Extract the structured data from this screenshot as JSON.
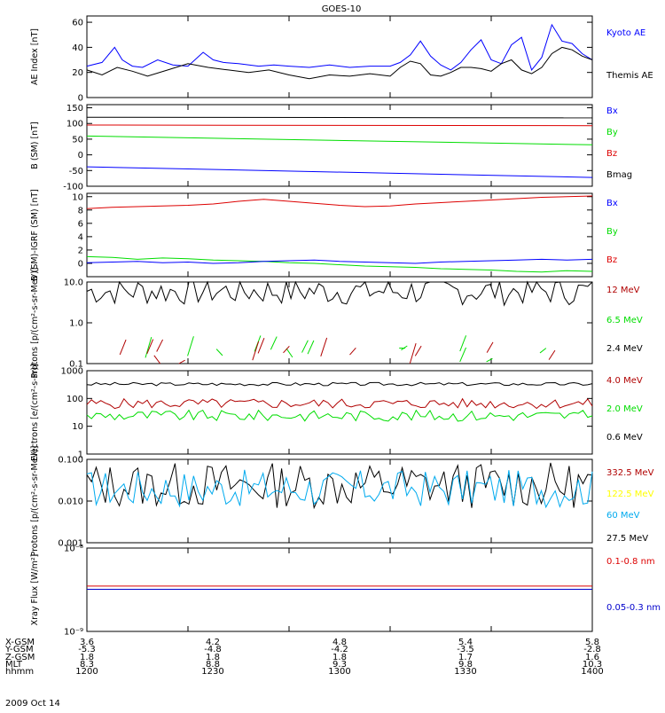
{
  "figure": {
    "title": "GOES-10",
    "date": "2009 Oct 14"
  },
  "footer": {
    "row_labels": [
      "X-GSM",
      "Y-GSM",
      "Z-GSM",
      "MLT",
      "hhmm"
    ],
    "columns": [
      [
        "3.6",
        "-5.3",
        "1.8",
        "8.3",
        "1200"
      ],
      [
        "4.2",
        "-4.8",
        "1.8",
        "8.8",
        "1230"
      ],
      [
        "4.8",
        "-4.2",
        "1.8",
        "9.3",
        "1300"
      ],
      [
        "5.4",
        "-3.5",
        "1.7",
        "9.8",
        "1330"
      ],
      [
        "5.8",
        "-2.8",
        "1.6",
        "10.3",
        "1400"
      ]
    ]
  },
  "colors": {
    "black": "#000000",
    "blue": "#0000ff",
    "green": "#00dd00",
    "red": "#dd0000",
    "dark_red": "#b00000",
    "yellow": "#ffff00",
    "cyan": "#00aaee",
    "dark_blue": "#0000cc"
  },
  "chart_data": [
    {
      "type": "line",
      "ylabel": "AE Index [nT]",
      "ylim": [
        0,
        65
      ],
      "yticks": [
        0,
        20,
        40,
        60
      ],
      "ytick_labels": [
        "0",
        "20",
        "40",
        "60"
      ],
      "legend": [
        {
          "text": "Kyoto AE",
          "color": "#0000ff"
        },
        {
          "text": "Themis AE",
          "color": "#000000"
        }
      ],
      "series": [
        {
          "name": "Kyoto AE",
          "color": "#0000ff",
          "x": [
            0,
            0.03,
            0.055,
            0.07,
            0.09,
            0.11,
            0.14,
            0.17,
            0.2,
            0.23,
            0.25,
            0.27,
            0.3,
            0.34,
            0.37,
            0.4,
            0.44,
            0.48,
            0.52,
            0.56,
            0.6,
            0.62,
            0.64,
            0.66,
            0.68,
            0.7,
            0.72,
            0.74,
            0.76,
            0.78,
            0.8,
            0.82,
            0.84,
            0.86,
            0.88,
            0.9,
            0.92,
            0.94,
            0.96,
            0.98,
            1
          ],
          "y": [
            25,
            28,
            40,
            30,
            25,
            24,
            30,
            26,
            25,
            36,
            30,
            28,
            27,
            25,
            26,
            25,
            24,
            26,
            24,
            25,
            25,
            28,
            34,
            45,
            33,
            26,
            22,
            28,
            38,
            46,
            30,
            27,
            42,
            48,
            22,
            32,
            58,
            45,
            43,
            35,
            30
          ]
        },
        {
          "name": "Themis AE",
          "color": "#000000",
          "x": [
            0,
            0.03,
            0.06,
            0.09,
            0.12,
            0.16,
            0.2,
            0.24,
            0.28,
            0.32,
            0.36,
            0.4,
            0.44,
            0.48,
            0.52,
            0.56,
            0.6,
            0.62,
            0.64,
            0.66,
            0.68,
            0.7,
            0.72,
            0.74,
            0.76,
            0.78,
            0.8,
            0.82,
            0.84,
            0.86,
            0.88,
            0.9,
            0.92,
            0.94,
            0.96,
            0.98,
            1
          ],
          "y": [
            22,
            18,
            24,
            21,
            17,
            22,
            27,
            24,
            22,
            20,
            22,
            18,
            15,
            18,
            17,
            19,
            17,
            24,
            29,
            27,
            18,
            17,
            20,
            24,
            24,
            23,
            21,
            27,
            30,
            22,
            19,
            24,
            35,
            40,
            38,
            33,
            30
          ]
        }
      ]
    },
    {
      "type": "line",
      "ylabel": "B (SM) [nT]",
      "ylim": [
        -100,
        160
      ],
      "yticks": [
        -100,
        -50,
        0,
        50,
        100,
        150
      ],
      "ytick_labels": [
        "-100",
        "-50",
        "0",
        "50",
        "100",
        "150"
      ],
      "legend": [
        {
          "text": "Bx",
          "color": "#0000ff"
        },
        {
          "text": "By",
          "color": "#00dd00"
        },
        {
          "text": "Bz",
          "color": "#dd0000"
        },
        {
          "text": "Bmag",
          "color": "#000000"
        }
      ],
      "series": [
        {
          "name": "Bmag",
          "color": "#000000",
          "x": [
            0,
            1
          ],
          "y": [
            120,
            118
          ]
        },
        {
          "name": "Bz",
          "color": "#dd0000",
          "x": [
            0,
            1
          ],
          "y": [
            95,
            93
          ]
        },
        {
          "name": "By",
          "color": "#00dd00",
          "x": [
            0,
            1
          ],
          "y": [
            60,
            32
          ]
        },
        {
          "name": "Bx",
          "color": "#0000ff",
          "x": [
            0,
            1
          ],
          "y": [
            -38,
            -72
          ]
        }
      ]
    },
    {
      "type": "line",
      "ylabel": "B (SM)-IGRF (SM) [nT]",
      "ylim": [
        -2,
        10.5
      ],
      "yticks": [
        0,
        2,
        4,
        6,
        8,
        10
      ],
      "ytick_labels": [
        "0",
        "2",
        "4",
        "6",
        "8",
        "10"
      ],
      "legend": [
        {
          "text": "Bx",
          "color": "#0000ff"
        },
        {
          "text": "By",
          "color": "#00dd00"
        },
        {
          "text": "Bz",
          "color": "#dd0000"
        }
      ],
      "series": [
        {
          "name": "Bz",
          "color": "#dd0000",
          "x": [
            0,
            0.05,
            0.1,
            0.15,
            0.2,
            0.25,
            0.3,
            0.35,
            0.4,
            0.45,
            0.5,
            0.55,
            0.6,
            0.65,
            0.7,
            0.75,
            0.8,
            0.85,
            0.9,
            0.95,
            1
          ],
          "y": [
            8.2,
            8.4,
            8.5,
            8.6,
            8.7,
            8.9,
            9.3,
            9.6,
            9.3,
            9.0,
            8.7,
            8.5,
            8.6,
            8.9,
            9.1,
            9.3,
            9.5,
            9.7,
            9.9,
            10.0,
            10.1
          ]
        },
        {
          "name": "By",
          "color": "#00dd00",
          "x": [
            0,
            0.05,
            0.1,
            0.15,
            0.2,
            0.25,
            0.3,
            0.35,
            0.4,
            0.45,
            0.5,
            0.55,
            0.6,
            0.65,
            0.7,
            0.75,
            0.8,
            0.85,
            0.9,
            0.95,
            1
          ],
          "y": [
            1.0,
            0.9,
            0.6,
            0.8,
            0.7,
            0.5,
            0.4,
            0.3,
            0.1,
            0.0,
            -0.2,
            -0.4,
            -0.5,
            -0.6,
            -0.8,
            -0.9,
            -1.0,
            -1.2,
            -1.3,
            -1.1,
            -1.2
          ]
        },
        {
          "name": "Bx",
          "color": "#0000ff",
          "x": [
            0,
            0.05,
            0.1,
            0.15,
            0.2,
            0.25,
            0.3,
            0.35,
            0.4,
            0.45,
            0.5,
            0.55,
            0.6,
            0.65,
            0.7,
            0.75,
            0.8,
            0.85,
            0.9,
            0.95,
            1
          ],
          "y": [
            0.1,
            0.2,
            0.3,
            0.1,
            0.2,
            0.0,
            0.1,
            0.3,
            0.4,
            0.5,
            0.3,
            0.2,
            0.1,
            0.0,
            0.2,
            0.3,
            0.4,
            0.5,
            0.6,
            0.5,
            0.6
          ]
        }
      ]
    },
    {
      "type": "line",
      "log": true,
      "ylabel": "Protons [p/(cm²-s-sr-MeV)]",
      "ylim": [
        0.1,
        10
      ],
      "yticks": [
        0.1,
        1.0,
        10.0
      ],
      "ytick_labels": [
        "0.1",
        "1.0",
        "10.0"
      ],
      "legend": [
        {
          "text": "12 MeV",
          "color": "#b00000"
        },
        {
          "text": "6.5 MeV",
          "color": "#00dd00"
        },
        {
          "text": "2.4 MeV",
          "color": "#000000"
        }
      ],
      "series": [
        {
          "name": "2.4 MeV",
          "color": "#000000",
          "noise": 0.35,
          "base": 6.0,
          "n": 110,
          "seed": 7
        },
        {
          "name": "6.5 MeV",
          "color": "#00dd00",
          "sparse": true,
          "base": 0.15,
          "seed": 11
        },
        {
          "name": "12 MeV",
          "color": "#b00000",
          "sparse": true,
          "base": 0.12,
          "seed": 23
        }
      ]
    },
    {
      "type": "line",
      "log": true,
      "ylabel": "Electrons [e/(cm²-s-sr)]",
      "ylim": [
        1,
        1000
      ],
      "yticks": [
        1,
        10,
        100,
        1000
      ],
      "ytick_labels": [
        "1",
        "10",
        "100",
        "1000"
      ],
      "legend": [
        {
          "text": "4.0 MeV",
          "color": "#b00000"
        },
        {
          "text": "2.0 MeV",
          "color": "#00dd00"
        },
        {
          "text": "0.6 MeV",
          "color": "#000000"
        }
      ],
      "series": [
        {
          "name": "0.6 MeV",
          "color": "#000000",
          "noise": 0.06,
          "base": 330,
          "n": 110,
          "seed": 3
        },
        {
          "name": "4.0 MeV",
          "color": "#b00000",
          "noise": 0.18,
          "base": 65,
          "n": 110,
          "seed": 5
        },
        {
          "name": "2.0 MeV",
          "color": "#00dd00",
          "noise": 0.2,
          "base": 24,
          "n": 110,
          "seed": 9
        }
      ]
    },
    {
      "type": "line",
      "log": true,
      "ylabel": "Protons [p/(cm²-s-sr-MeV)]",
      "ylim": [
        0.001,
        0.1
      ],
      "yticks": [
        0.001,
        0.01,
        0.1
      ],
      "ytick_labels": [
        "0.001",
        "0.010",
        "0.100"
      ],
      "legend": [
        {
          "text": "332.5 MeV",
          "color": "#b00000"
        },
        {
          "text": "122.5 MeV",
          "color": "#ffff00"
        },
        {
          "text": "60 MeV",
          "color": "#00aaee"
        },
        {
          "text": "27.5 MeV",
          "color": "#000000"
        }
      ],
      "series": [
        {
          "name": "27.5 MeV",
          "color": "#000000",
          "noise": 0.55,
          "base": 0.024,
          "n": 110,
          "seed": 13
        },
        {
          "name": "60 MeV",
          "color": "#00aaee",
          "noise": 0.45,
          "base": 0.02,
          "n": 110,
          "seed": 17
        }
      ]
    },
    {
      "type": "line",
      "log": true,
      "ylabel": "Xray Flux [W/m²]",
      "ylim": [
        1e-09,
        1e-08
      ],
      "yticks": [
        1e-09,
        1e-08
      ],
      "ytick_labels": [
        "10⁻⁹",
        "10⁻⁸"
      ],
      "legend": [
        {
          "text": "0.1-0.8 nm",
          "color": "#dd0000"
        },
        {
          "text": "0.05-0.3 nm",
          "color": "#0000cc"
        }
      ],
      "series": [
        {
          "name": "0.1-0.8 nm",
          "color": "#dd0000",
          "x": [
            0,
            1
          ],
          "y": [
            3.5e-09,
            3.5e-09
          ]
        },
        {
          "name": "0.05-0.3 nm",
          "color": "#0000cc",
          "x": [
            0,
            1
          ],
          "y": [
            3.2e-09,
            3.2e-09
          ]
        }
      ]
    }
  ]
}
